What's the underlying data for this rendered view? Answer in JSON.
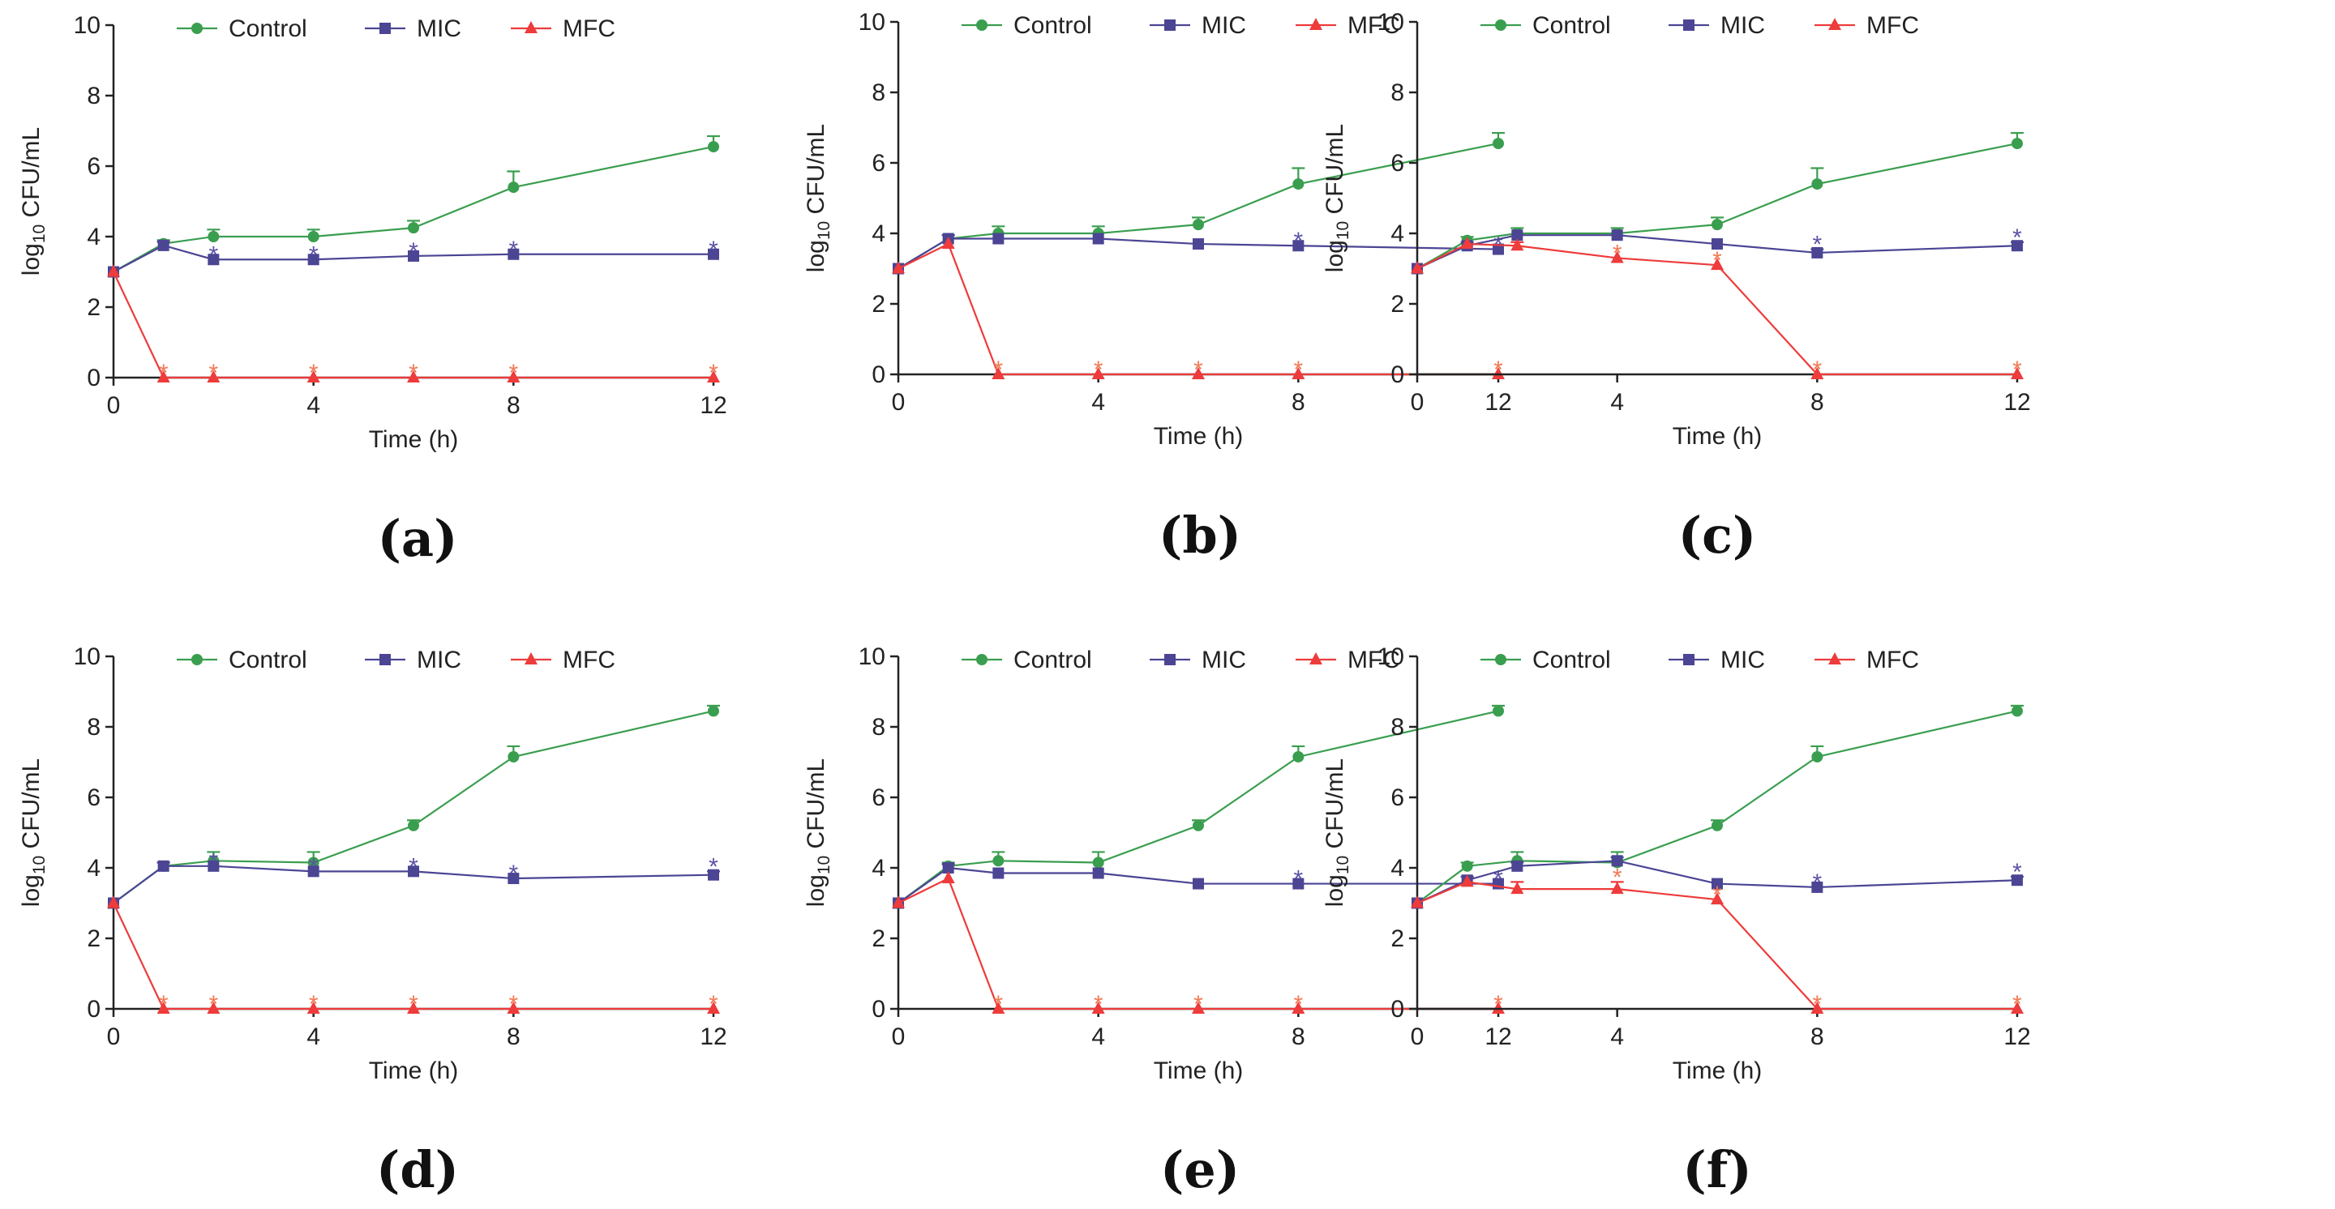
{
  "colors": {
    "Control": "#3a9e4f",
    "MIC": "#4b4594",
    "MFC": "#ee3b3b",
    "MIC_star": "#5b53a6",
    "MFC_star": "#f07a55"
  },
  "legend": [
    "Control",
    "MIC",
    "MFC"
  ],
  "chart_data": [
    {
      "type": "line",
      "panel_label": "(a)",
      "xlabel": "Time (h)",
      "ylabel": "log10 CFU/mL",
      "xlim": [
        0,
        12
      ],
      "ylim": [
        0,
        10
      ],
      "xticks": [
        "0",
        "4",
        "8",
        "12"
      ],
      "yticks": [
        "0",
        "2",
        "4",
        "6",
        "8",
        "10"
      ],
      "legend_position": "top",
      "series": [
        {
          "name": "Control",
          "marker": "circle",
          "x": [
            0,
            1,
            2,
            4,
            6,
            8,
            12
          ],
          "y": [
            3.0,
            3.8,
            4.0,
            4.0,
            4.25,
            5.4,
            6.55
          ],
          "error": [
            0,
            0.1,
            0.2,
            0.2,
            0.2,
            0.45,
            0.3
          ]
        },
        {
          "name": "MIC",
          "marker": "square",
          "x": [
            0,
            1,
            2,
            4,
            6,
            8,
            12
          ],
          "y": [
            3.0,
            3.75,
            3.35,
            3.35,
            3.45,
            3.5,
            3.5
          ],
          "error": [
            0,
            0.1,
            0,
            0,
            0,
            0,
            0
          ]
        },
        {
          "name": "MFC",
          "marker": "triangle",
          "x": [
            0,
            1,
            2,
            4,
            6,
            8,
            12
          ],
          "y": [
            3.0,
            0,
            0,
            0,
            0,
            0,
            0
          ],
          "error": [
            0,
            0,
            0,
            0,
            0,
            0,
            0
          ]
        }
      ],
      "significance": {
        "MIC": [
          2,
          4,
          6,
          8,
          12
        ],
        "MFC": [
          1,
          2,
          4,
          6,
          8,
          12
        ]
      }
    },
    {
      "type": "line",
      "panel_label": "(b)",
      "xlabel": "Time (h)",
      "ylabel": "log10 CFU/mL",
      "xlim": [
        0,
        12
      ],
      "ylim": [
        0,
        10
      ],
      "xticks": [
        "0",
        "4",
        "8",
        "12"
      ],
      "yticks": [
        "0",
        "2",
        "4",
        "6",
        "8",
        "10"
      ],
      "legend_position": "top",
      "series": [
        {
          "name": "Control",
          "marker": "circle",
          "x": [
            0,
            1,
            2,
            4,
            6,
            8,
            12
          ],
          "y": [
            3.0,
            3.85,
            4.0,
            4.0,
            4.25,
            5.4,
            6.55
          ],
          "error": [
            0,
            0.1,
            0.2,
            0.2,
            0.2,
            0.45,
            0.3
          ]
        },
        {
          "name": "MIC",
          "marker": "square",
          "x": [
            0,
            1,
            2,
            4,
            6,
            8,
            12
          ],
          "y": [
            3.0,
            3.85,
            3.85,
            3.85,
            3.7,
            3.65,
            3.55
          ],
          "error": [
            0,
            0.1,
            0,
            0,
            0,
            0,
            0
          ]
        },
        {
          "name": "MFC",
          "marker": "triangle",
          "x": [
            0,
            1,
            2,
            4,
            6,
            8,
            12
          ],
          "y": [
            3.0,
            3.7,
            0,
            0,
            0,
            0,
            0
          ],
          "error": [
            0,
            0,
            0,
            0,
            0,
            0,
            0
          ]
        }
      ],
      "significance": {
        "MIC": [
          8,
          12
        ],
        "MFC": [
          2,
          4,
          6,
          8,
          12
        ]
      }
    },
    {
      "type": "line",
      "panel_label": "(c)",
      "xlabel": "Time (h)",
      "ylabel": "log10 CFU/mL",
      "xlim": [
        0,
        12
      ],
      "ylim": [
        0,
        10
      ],
      "xticks": [
        "0",
        "4",
        "8",
        "12"
      ],
      "yticks": [
        "0",
        "2",
        "4",
        "6",
        "8",
        "10"
      ],
      "legend_position": "top",
      "series": [
        {
          "name": "Control",
          "marker": "circle",
          "x": [
            0,
            1,
            2,
            4,
            6,
            8,
            12
          ],
          "y": [
            3.0,
            3.8,
            4.0,
            4.0,
            4.25,
            5.4,
            6.55
          ],
          "error": [
            0,
            0.1,
            0.15,
            0.15,
            0.2,
            0.45,
            0.3
          ]
        },
        {
          "name": "MIC",
          "marker": "square",
          "x": [
            0,
            1,
            2,
            4,
            6,
            8,
            12
          ],
          "y": [
            3.0,
            3.65,
            3.95,
            3.95,
            3.7,
            3.45,
            3.65
          ],
          "error": [
            0,
            0.1,
            0,
            0,
            0,
            0.1,
            0.1
          ]
        },
        {
          "name": "MFC",
          "marker": "triangle",
          "x": [
            0,
            1,
            2,
            4,
            6,
            8,
            12
          ],
          "y": [
            3.0,
            3.7,
            3.65,
            3.3,
            3.1,
            0,
            0
          ],
          "error": [
            0,
            0,
            0.1,
            0,
            0,
            0,
            0
          ]
        }
      ],
      "significance": {
        "MIC": [
          8,
          12
        ],
        "MFC": [
          4,
          6,
          8,
          12
        ]
      }
    },
    {
      "type": "line",
      "panel_label": "(d)",
      "xlabel": "Time (h)",
      "ylabel": "log10 CFU/mL",
      "xlim": [
        0,
        12
      ],
      "ylim": [
        0,
        10
      ],
      "xticks": [
        "0",
        "4",
        "8",
        "12"
      ],
      "yticks": [
        "0",
        "2",
        "4",
        "6",
        "8",
        "10"
      ],
      "legend_position": "top",
      "series": [
        {
          "name": "Control",
          "marker": "circle",
          "x": [
            0,
            1,
            2,
            4,
            6,
            8,
            12
          ],
          "y": [
            3.0,
            4.05,
            4.2,
            4.15,
            5.2,
            7.15,
            8.45
          ],
          "error": [
            0,
            0.1,
            0.25,
            0.3,
            0.15,
            0.3,
            0.15
          ]
        },
        {
          "name": "MIC",
          "marker": "square",
          "x": [
            0,
            1,
            2,
            4,
            6,
            8,
            12
          ],
          "y": [
            3.0,
            4.05,
            4.05,
            3.9,
            3.9,
            3.7,
            3.8
          ],
          "error": [
            0,
            0.1,
            0,
            0,
            0,
            0,
            0.1
          ]
        },
        {
          "name": "MFC",
          "marker": "triangle",
          "x": [
            0,
            1,
            2,
            4,
            6,
            8,
            12
          ],
          "y": [
            3.0,
            0,
            0,
            0,
            0,
            0,
            0
          ],
          "error": [
            0,
            0,
            0,
            0,
            0,
            0,
            0
          ]
        }
      ],
      "significance": {
        "MIC": [
          2,
          4,
          6,
          8,
          12
        ],
        "MFC": [
          1,
          2,
          4,
          6,
          8,
          12
        ]
      }
    },
    {
      "type": "line",
      "panel_label": "(e)",
      "xlabel": "Time (h)",
      "ylabel": "log10 CFU/mL",
      "xlim": [
        0,
        12
      ],
      "ylim": [
        0,
        10
      ],
      "xticks": [
        "0",
        "4",
        "8",
        "12"
      ],
      "yticks": [
        "0",
        "2",
        "4",
        "6",
        "8",
        "10"
      ],
      "legend_position": "top",
      "series": [
        {
          "name": "Control",
          "marker": "circle",
          "x": [
            0,
            1,
            2,
            4,
            6,
            8,
            12
          ],
          "y": [
            3.0,
            4.05,
            4.2,
            4.15,
            5.2,
            7.15,
            8.45
          ],
          "error": [
            0,
            0.1,
            0.25,
            0.3,
            0.15,
            0.3,
            0.15
          ]
        },
        {
          "name": "MIC",
          "marker": "square",
          "x": [
            0,
            1,
            2,
            4,
            6,
            8,
            12
          ],
          "y": [
            3.0,
            4.0,
            3.85,
            3.85,
            3.55,
            3.55,
            3.55
          ],
          "error": [
            0,
            0.1,
            0,
            0,
            0,
            0,
            0
          ]
        },
        {
          "name": "MFC",
          "marker": "triangle",
          "x": [
            0,
            1,
            2,
            4,
            6,
            8,
            12
          ],
          "y": [
            3.0,
            3.7,
            0,
            0,
            0,
            0,
            0
          ],
          "error": [
            0,
            0,
            0,
            0,
            0,
            0,
            0
          ]
        }
      ],
      "significance": {
        "MIC": [
          8,
          12
        ],
        "MFC": [
          2,
          4,
          6,
          8,
          12
        ]
      }
    },
    {
      "type": "line",
      "panel_label": "(f)",
      "xlabel": "Time (h)",
      "ylabel": "log10 CFU/mL",
      "xlim": [
        0,
        12
      ],
      "ylim": [
        0,
        10
      ],
      "xticks": [
        "0",
        "4",
        "8",
        "12"
      ],
      "yticks": [
        "0",
        "2",
        "4",
        "6",
        "8",
        "10"
      ],
      "legend_position": "top",
      "series": [
        {
          "name": "Control",
          "marker": "circle",
          "x": [
            0,
            1,
            2,
            4,
            6,
            8,
            12
          ],
          "y": [
            3.0,
            4.05,
            4.2,
            4.15,
            5.2,
            7.15,
            8.45
          ],
          "error": [
            0,
            0.1,
            0.25,
            0.3,
            0.15,
            0.3,
            0.15
          ]
        },
        {
          "name": "MIC",
          "marker": "square",
          "x": [
            0,
            1,
            2,
            4,
            6,
            8,
            12
          ],
          "y": [
            3.0,
            3.65,
            4.05,
            4.2,
            3.55,
            3.45,
            3.65
          ],
          "error": [
            0,
            0.1,
            0.1,
            0.1,
            0,
            0,
            0.1
          ]
        },
        {
          "name": "MFC",
          "marker": "triangle",
          "x": [
            0,
            1,
            2,
            4,
            6,
            8,
            12
          ],
          "y": [
            3.0,
            3.6,
            3.4,
            3.4,
            3.1,
            0,
            0
          ],
          "error": [
            0,
            0,
            0.2,
            0.2,
            0,
            0,
            0
          ]
        }
      ],
      "significance": {
        "MIC": [
          8,
          12
        ],
        "MFC": [
          4,
          6,
          8,
          12
        ]
      }
    }
  ]
}
